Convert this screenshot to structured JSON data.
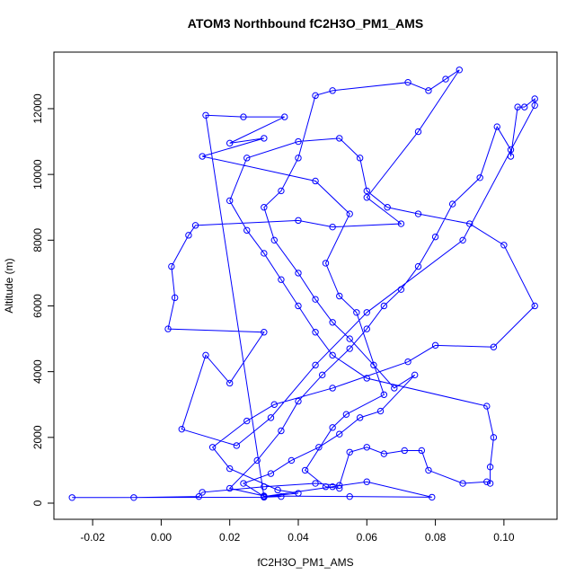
{
  "chart_data": {
    "type": "line",
    "title": "ATOM3 Northbound fC2H3O_PM1_AMS",
    "x_label": "fC2H3O_PM1_AMS",
    "y_label": "Altitude (m)",
    "color": "#0000ff",
    "markers": true,
    "xlim": [
      -0.0313,
      0.1155
    ],
    "ylim": [
      -492,
      13721
    ],
    "xticks": [
      {
        "value": -0.02,
        "label": "-0.02"
      },
      {
        "value": 0,
        "label": "0.00"
      },
      {
        "value": 0.02,
        "label": "0.02"
      },
      {
        "value": 0.04,
        "label": "0.04"
      },
      {
        "value": 0.06,
        "label": "0.06"
      },
      {
        "value": 0.08,
        "label": "0.08"
      },
      {
        "value": 0.1,
        "label": "0.10"
      }
    ],
    "yticks": [
      0,
      2000,
      4000,
      6000,
      8000,
      10000,
      12000
    ],
    "series": [
      {
        "name": "fC2H3O_PM1_AMS",
        "x": [
          0.035,
          0.03,
          -0.026,
          -0.008,
          0.011,
          0.012,
          0.03,
          0.045,
          0.052,
          0.055,
          0.06,
          0.065,
          0.071,
          0.076,
          0.078,
          0.088,
          0.095,
          0.096,
          0.096,
          0.097,
          0.095,
          0.06,
          0.05,
          0.045,
          0.04,
          0.035,
          0.03,
          0.025,
          0.02,
          0.025,
          0.04,
          0.052,
          0.058,
          0.06,
          0.066,
          0.075,
          0.09,
          0.1,
          0.109,
          0.097,
          0.08,
          0.072,
          0.05,
          0.033,
          0.025,
          0.015,
          0.02,
          0.034,
          0.04,
          0.03,
          0.05,
          0.06,
          0.079,
          0.055,
          0.03,
          0.02,
          0.028,
          0.035,
          0.04,
          0.047,
          0.055,
          0.06,
          0.065,
          0.07,
          0.075,
          0.08,
          0.085,
          0.093,
          0.098,
          0.102,
          0.102,
          0.104,
          0.106,
          0.109,
          0.109,
          0.088,
          0.06,
          0.045,
          0.032,
          0.022,
          0.006,
          0.013,
          0.02,
          0.03,
          0.002,
          0.004,
          0.003,
          0.008,
          0.01,
          0.04,
          0.05,
          0.07,
          0.06,
          0.075,
          0.087,
          0.083,
          0.078,
          0.072,
          0.05,
          0.045,
          0.04,
          0.035,
          0.03,
          0.033,
          0.04,
          0.045,
          0.05,
          0.055,
          0.062,
          0.068,
          0.074,
          0.064,
          0.058,
          0.052,
          0.046,
          0.038,
          0.032,
          0.024,
          0.03,
          0.013,
          0.024,
          0.036,
          0.02,
          0.03,
          0.012,
          0.045,
          0.055,
          0.048,
          0.052,
          0.057,
          0.065,
          0.054,
          0.05,
          0.042,
          0.048,
          0.052
        ],
        "values": [
          200,
          180,
          170,
          170,
          200,
          330,
          500,
          600,
          540,
          1550,
          1700,
          1500,
          1600,
          1600,
          1000,
          600,
          650,
          600,
          1100,
          2000,
          2950,
          3800,
          4500,
          5200,
          6000,
          6800,
          7600,
          8300,
          9200,
          10500,
          11000,
          11100,
          10500,
          9500,
          9000,
          8800,
          8500,
          7850,
          6000,
          4750,
          4800,
          4300,
          3500,
          3000,
          2500,
          1700,
          1050,
          400,
          300,
          200,
          500,
          650,
          180,
          200,
          220,
          450,
          1300,
          2200,
          3100,
          3900,
          4700,
          5300,
          6000,
          6500,
          7200,
          8100,
          9100,
          9900,
          11450,
          10750,
          10550,
          12050,
          12050,
          12300,
          12100,
          8000,
          5800,
          4200,
          2600,
          1750,
          2250,
          4500,
          3650,
          5200,
          5300,
          6250,
          7200,
          8150,
          8450,
          8600,
          8400,
          8500,
          9300,
          11300,
          13180,
          12900,
          12550,
          12800,
          12550,
          12400,
          10500,
          9500,
          9000,
          8000,
          7000,
          6200,
          5500,
          5000,
          4200,
          3500,
          3900,
          2800,
          2600,
          2100,
          1700,
          1300,
          900,
          600,
          200,
          11800,
          11750,
          11750,
          10950,
          11100,
          10550,
          9800,
          8800,
          7300,
          6300,
          5800,
          3300,
          2700,
          2300,
          1000,
          500,
          450
        ]
      }
    ]
  }
}
